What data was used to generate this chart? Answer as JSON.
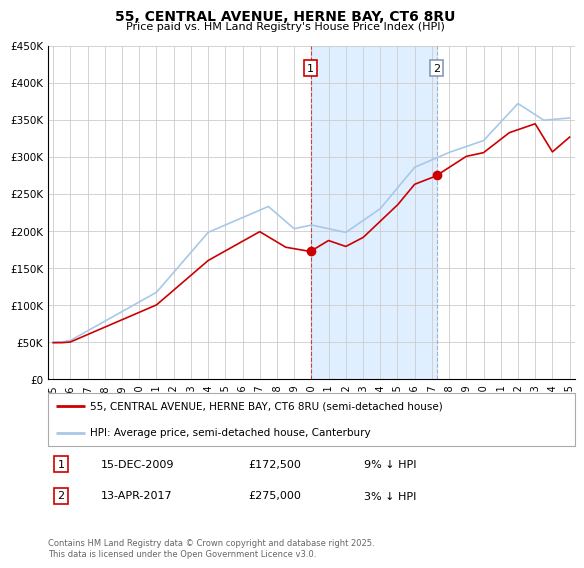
{
  "title": "55, CENTRAL AVENUE, HERNE BAY, CT6 8RU",
  "subtitle": "Price paid vs. HM Land Registry's House Price Index (HPI)",
  "hpi_color": "#a8c8e8",
  "price_color": "#cc0000",
  "background_color": "#ffffff",
  "grid_color": "#cccccc",
  "ylim": [
    0,
    450000
  ],
  "yticks": [
    0,
    50000,
    100000,
    150000,
    200000,
    250000,
    300000,
    350000,
    400000,
    450000
  ],
  "ytick_labels": [
    "£0",
    "£50K",
    "£100K",
    "£150K",
    "£200K",
    "£250K",
    "£300K",
    "£350K",
    "£400K",
    "£450K"
  ],
  "x_start": 1995,
  "x_end": 2025,
  "xticks": [
    1995,
    1996,
    1997,
    1998,
    1999,
    2000,
    2001,
    2002,
    2003,
    2004,
    2005,
    2006,
    2007,
    2008,
    2009,
    2010,
    2011,
    2012,
    2013,
    2014,
    2015,
    2016,
    2017,
    2018,
    2019,
    2020,
    2021,
    2022,
    2023,
    2024,
    2025
  ],
  "sale1_x": 2009.958,
  "sale1_y": 172500,
  "sale1_label": "1",
  "sale1_date": "15-DEC-2009",
  "sale1_price": "£172,500",
  "sale1_hpi_diff": "9% ↓ HPI",
  "sale2_x": 2017.286,
  "sale2_y": 275000,
  "sale2_label": "2",
  "sale2_date": "13-APR-2017",
  "sale2_price": "£275,000",
  "sale2_hpi_diff": "3% ↓ HPI",
  "legend_label_price": "55, CENTRAL AVENUE, HERNE BAY, CT6 8RU (semi-detached house)",
  "legend_label_hpi": "HPI: Average price, semi-detached house, Canterbury",
  "footer": "Contains HM Land Registry data © Crown copyright and database right 2025.\nThis data is licensed under the Open Government Licence v3.0.",
  "shaded_region_color": "#ddeeff"
}
